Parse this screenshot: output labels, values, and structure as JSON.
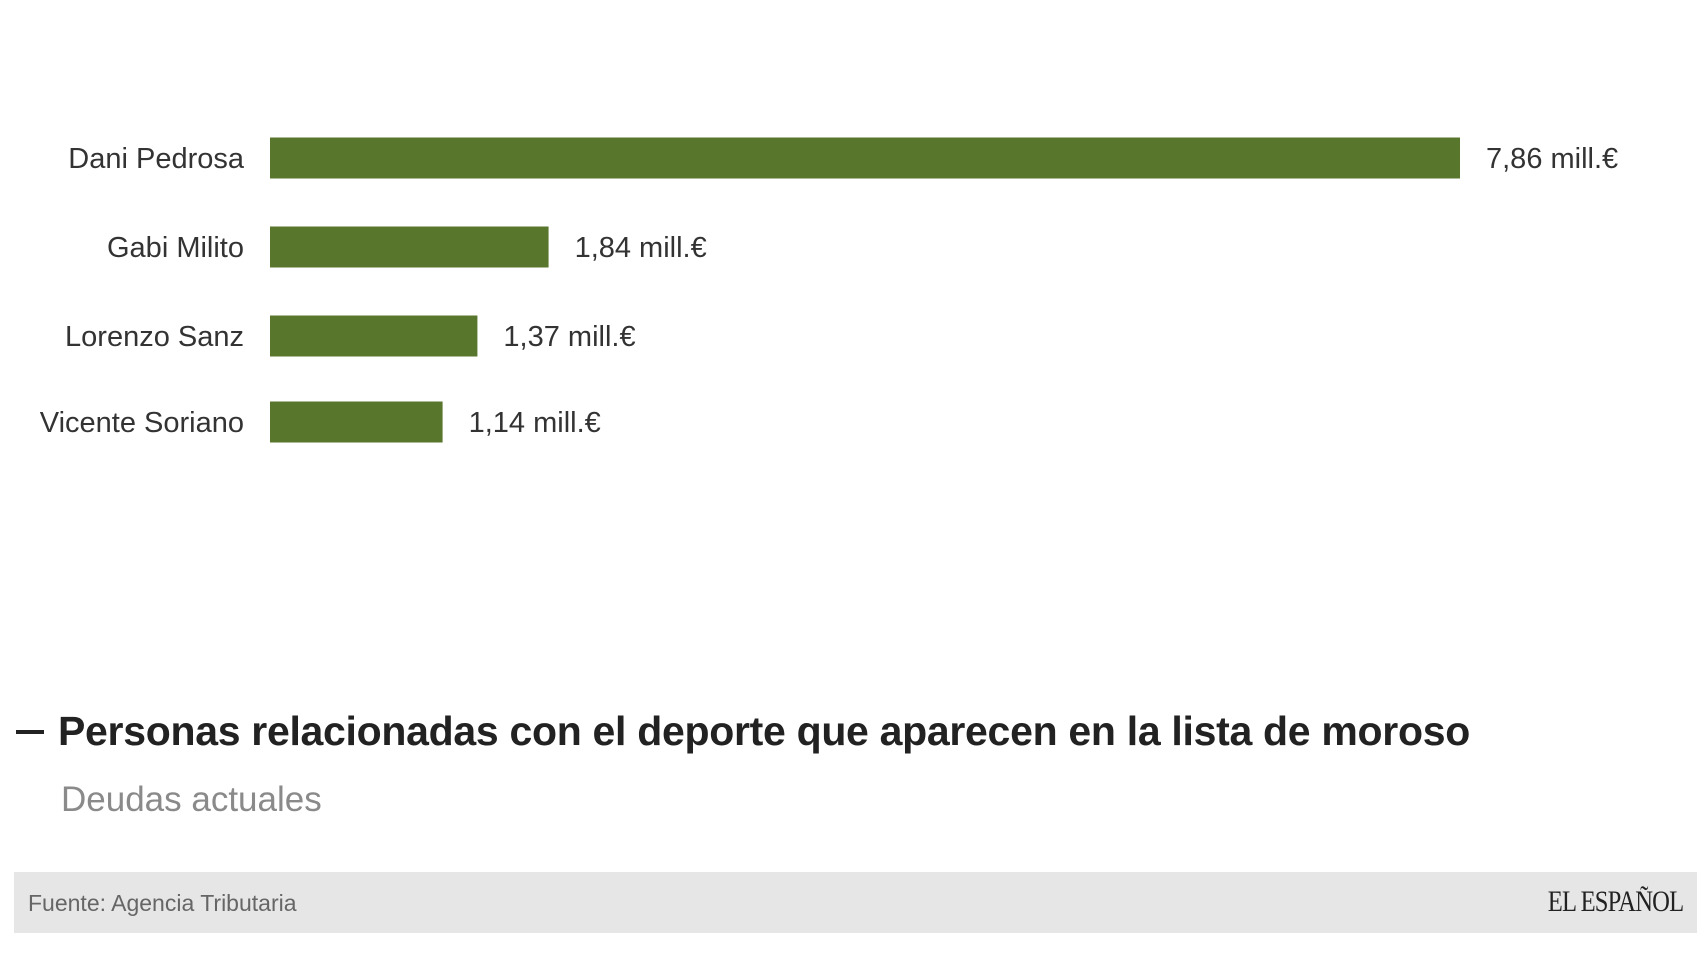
{
  "chart_data": {
    "type": "bar",
    "orientation": "horizontal",
    "categories": [
      "Dani Pedrosa",
      "Gabi Milito",
      "Lorenzo Sanz",
      "Vicente Soriano"
    ],
    "values": [
      7.86,
      1.84,
      1.37,
      1.14
    ],
    "value_labels": [
      "7,86 mill.€",
      "1,84 mill.€",
      "1,37 mill.€",
      "1,14 mill.€"
    ],
    "xlim": [
      0,
      7.86
    ],
    "grid": false,
    "legend": "none",
    "bar_color": "#58772d"
  },
  "title": "Personas relacionadas con el deporte que aparecen en la lista de moroso",
  "subtitle": "Deudas actuales",
  "footer": {
    "source": "Fuente: Agencia Tributaria",
    "brand": "EL ESPAÑOL"
  },
  "colors": {
    "bar": "#58772d",
    "footer_bg": "#e6e6e6",
    "subtitle": "#8a8a8a"
  }
}
